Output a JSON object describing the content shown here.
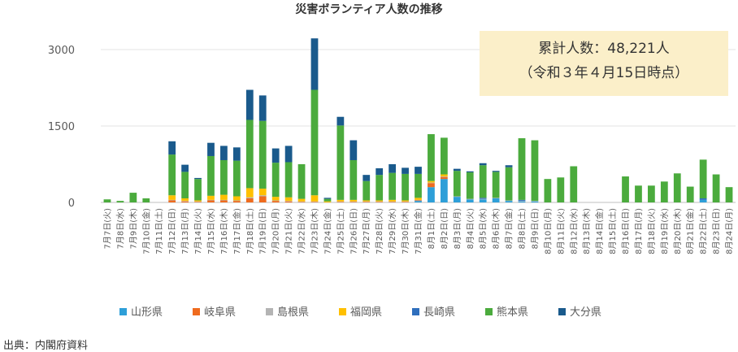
{
  "page": {
    "source": "出典：内閣府資料"
  },
  "callout": {
    "line1": "累計人数：48,221人",
    "line2": "（令和３年４月15日時点）"
  },
  "chart_data": {
    "type": "bar",
    "stacked": true,
    "title": "災害ボランティア人数の推移",
    "xlabel": "",
    "ylabel": "",
    "ylim": [
      0,
      3000
    ],
    "yticks": [
      0,
      1500,
      3000
    ],
    "legend_position": "bottom",
    "categories": [
      "7月7日(火)",
      "7月8日(水)",
      "7月9日(木)",
      "7月10日(金)",
      "7月11日(土)",
      "7月12日(日)",
      "7月13日(月)",
      "7月14日(火)",
      "7月15日(水)",
      "7月16日(木)",
      "7月17日(金)",
      "7月18日(土)",
      "7月19日(日)",
      "7月20日(月)",
      "7月21日(火)",
      "7月22日(水)",
      "7月23日(木)",
      "7月24日(金)",
      "7月25日(土)",
      "7月26日(日)",
      "7月27日(月)",
      "7月28日(火)",
      "7月29日(水)",
      "7月30日(木)",
      "7月31日(金)",
      "8月1日(土)",
      "8月2日(日)",
      "8月3日(月)",
      "8月4日(火)",
      "8月5日(水)",
      "8月6日(木)",
      "8月7日(金)",
      "8月8日(土)",
      "8月9日(日)",
      "8月10日(月)",
      "8月11日(火)",
      "8月12日(水)",
      "8月13日(木)",
      "8月14日(金)",
      "8月15日(土)",
      "8月16日(日)",
      "8月17日(月)",
      "8月18日(火)",
      "8月19日(水)",
      "8月20日(木)",
      "8月21日(金)",
      "8月22日(土)",
      "8月23日(日)",
      "8月24日(月)"
    ],
    "series": [
      {
        "name": "山形県",
        "color": "#2e9fd8",
        "values": [
          0,
          0,
          0,
          0,
          0,
          0,
          0,
          0,
          0,
          0,
          0,
          0,
          0,
          0,
          0,
          0,
          0,
          0,
          0,
          0,
          0,
          0,
          0,
          0,
          30,
          300,
          460,
          110,
          60,
          60,
          80,
          30,
          20,
          20,
          0,
          0,
          0,
          0,
          0,
          0,
          0,
          0,
          0,
          0,
          0,
          0,
          50,
          0,
          0
        ]
      },
      {
        "name": "岐阜県",
        "color": "#ef6b1e",
        "values": [
          0,
          0,
          0,
          0,
          0,
          40,
          20,
          10,
          40,
          40,
          30,
          80,
          120,
          30,
          20,
          10,
          10,
          0,
          10,
          10,
          10,
          10,
          10,
          10,
          10,
          80,
          40,
          0,
          0,
          0,
          0,
          0,
          0,
          0,
          0,
          0,
          0,
          0,
          0,
          0,
          0,
          0,
          0,
          0,
          0,
          0,
          0,
          0,
          0
        ]
      },
      {
        "name": "島根県",
        "color": "#b4b4b4",
        "values": [
          0,
          0,
          0,
          0,
          0,
          10,
          10,
          10,
          10,
          10,
          10,
          20,
          20,
          10,
          10,
          10,
          10,
          0,
          10,
          10,
          10,
          10,
          10,
          10,
          10,
          10,
          10,
          10,
          10,
          10,
          10,
          10,
          10,
          10,
          0,
          0,
          0,
          0,
          0,
          0,
          0,
          0,
          0,
          0,
          0,
          0,
          0,
          0,
          0
        ]
      },
      {
        "name": "福岡県",
        "color": "#ffc000",
        "values": [
          0,
          0,
          0,
          0,
          0,
          90,
          50,
          20,
          80,
          100,
          80,
          180,
          130,
          70,
          70,
          50,
          120,
          20,
          30,
          30,
          20,
          20,
          30,
          20,
          40,
          30,
          40,
          0,
          0,
          0,
          0,
          0,
          0,
          0,
          0,
          0,
          0,
          0,
          0,
          0,
          0,
          0,
          0,
          0,
          0,
          0,
          0,
          0,
          0
        ]
      },
      {
        "name": "長崎県",
        "color": "#2f6fbd",
        "values": [
          0,
          0,
          0,
          0,
          0,
          0,
          0,
          0,
          0,
          0,
          0,
          0,
          0,
          0,
          0,
          0,
          0,
          0,
          0,
          0,
          0,
          0,
          0,
          0,
          0,
          0,
          0,
          0,
          0,
          20,
          0,
          0,
          20,
          0,
          0,
          0,
          0,
          0,
          0,
          0,
          0,
          0,
          0,
          0,
          0,
          0,
          30,
          0,
          0
        ]
      },
      {
        "name": "熊本県",
        "color": "#4bab3d",
        "values": [
          60,
          30,
          190,
          80,
          0,
          800,
          520,
          420,
          780,
          680,
          700,
          1340,
          1330,
          670,
          690,
          680,
          2070,
          50,
          1460,
          780,
          380,
          500,
          530,
          520,
          470,
          920,
          720,
          500,
          520,
          640,
          510,
          650,
          1210,
          1190,
          460,
          490,
          710,
          0,
          0,
          0,
          510,
          330,
          330,
          410,
          570,
          310,
          760,
          550,
          300
        ]
      },
      {
        "name": "大分県",
        "color": "#1a5a8c",
        "values": [
          0,
          0,
          0,
          0,
          0,
          260,
          140,
          20,
          260,
          280,
          260,
          590,
          500,
          280,
          320,
          0,
          1010,
          20,
          170,
          390,
          120,
          130,
          170,
          120,
          140,
          0,
          0,
          40,
          20,
          40,
          20,
          40,
          0,
          0,
          0,
          0,
          0,
          0,
          0,
          0,
          0,
          0,
          0,
          0,
          0,
          0,
          0,
          0,
          0
        ]
      }
    ]
  }
}
